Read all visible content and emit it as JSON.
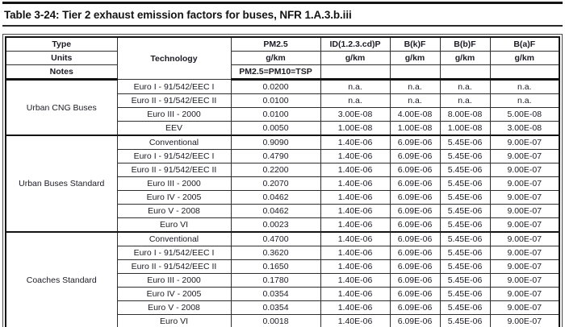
{
  "page": {
    "title": "Table 3-24: Tier 2 exhaust emission factors for buses, NFR 1.A.3.b.iii"
  },
  "colors": {
    "text": "#1b1b24",
    "grid_line": "#2e2e2e",
    "heavy_line": "#141414",
    "background": "#ffffff"
  },
  "table": {
    "corner_labels": {
      "type": "Type",
      "units": "Units",
      "notes": "Notes"
    },
    "technology_header": "Technology",
    "columns": [
      {
        "name": "PM2.5",
        "unit": "g/km",
        "note": "PM2.5=PM10=TSP"
      },
      {
        "name": "ID(1.2.3.cd)P",
        "unit": "g/km",
        "note": ""
      },
      {
        "name": "B(k)F",
        "unit": "g/km",
        "note": ""
      },
      {
        "name": "B(b)F",
        "unit": "g/km",
        "note": ""
      },
      {
        "name": "B(a)F",
        "unit": "g/km",
        "note": ""
      }
    ],
    "groups": [
      {
        "type": "Urban CNG Buses",
        "rows": [
          {
            "technology": "Euro I - 91/542/EEC I",
            "values": [
              "0.0200",
              "n.a.",
              "n.a.",
              "n.a.",
              "n.a."
            ]
          },
          {
            "technology": "Euro II - 91/542/EEC II",
            "values": [
              "0.0100",
              "n.a.",
              "n.a.",
              "n.a.",
              "n.a."
            ]
          },
          {
            "technology": "Euro III - 2000",
            "values": [
              "0.0100",
              "3.00E-08",
              "4.00E-08",
              "8.00E-08",
              "5.00E-08"
            ]
          },
          {
            "technology": "EEV",
            "values": [
              "0.0050",
              "1.00E-08",
              "1.00E-08",
              "1.00E-08",
              "3.00E-08"
            ]
          }
        ]
      },
      {
        "type": "Urban Buses Standard",
        "rows": [
          {
            "technology": "Conventional",
            "values": [
              "0.9090",
              "1.40E-06",
              "6.09E-06",
              "5.45E-06",
              "9.00E-07"
            ]
          },
          {
            "technology": "Euro I - 91/542/EEC I",
            "values": [
              "0.4790",
              "1.40E-06",
              "6.09E-06",
              "5.45E-06",
              "9.00E-07"
            ]
          },
          {
            "technology": "Euro II - 91/542/EEC II",
            "values": [
              "0.2200",
              "1.40E-06",
              "6.09E-06",
              "5.45E-06",
              "9.00E-07"
            ]
          },
          {
            "technology": "Euro III - 2000",
            "values": [
              "0.2070",
              "1.40E-06",
              "6.09E-06",
              "5.45E-06",
              "9.00E-07"
            ]
          },
          {
            "technology": "Euro IV - 2005",
            "values": [
              "0.0462",
              "1.40E-06",
              "6.09E-06",
              "5.45E-06",
              "9.00E-07"
            ]
          },
          {
            "technology": "Euro V - 2008",
            "values": [
              "0.0462",
              "1.40E-06",
              "6.09E-06",
              "5.45E-06",
              "9.00E-07"
            ]
          },
          {
            "technology": "Euro VI",
            "values": [
              "0.0023",
              "1.40E-06",
              "6.09E-06",
              "5.45E-06",
              "9.00E-07"
            ]
          }
        ]
      },
      {
        "type": "Coaches Standard",
        "rows": [
          {
            "technology": "Conventional",
            "values": [
              "0.4700",
              "1.40E-06",
              "6.09E-06",
              "5.45E-06",
              "9.00E-07"
            ]
          },
          {
            "technology": "Euro I - 91/542/EEC I",
            "values": [
              "0.3620",
              "1.40E-06",
              "6.09E-06",
              "5.45E-06",
              "9.00E-07"
            ]
          },
          {
            "technology": "Euro II - 91/542/EEC II",
            "values": [
              "0.1650",
              "1.40E-06",
              "6.09E-06",
              "5.45E-06",
              "9.00E-07"
            ]
          },
          {
            "technology": "Euro III - 2000",
            "values": [
              "0.1780",
              "1.40E-06",
              "6.09E-06",
              "5.45E-06",
              "9.00E-07"
            ]
          },
          {
            "technology": "Euro IV - 2005",
            "values": [
              "0.0354",
              "1.40E-06",
              "6.09E-06",
              "5.45E-06",
              "9.00E-07"
            ]
          },
          {
            "technology": "Euro V - 2008",
            "values": [
              "0.0354",
              "1.40E-06",
              "6.09E-06",
              "5.45E-06",
              "9.00E-07"
            ]
          },
          {
            "technology": "Euro VI",
            "values": [
              "0.0018",
              "1.40E-06",
              "6.09E-06",
              "5.45E-06",
              "9.00E-07"
            ]
          }
        ]
      }
    ]
  }
}
